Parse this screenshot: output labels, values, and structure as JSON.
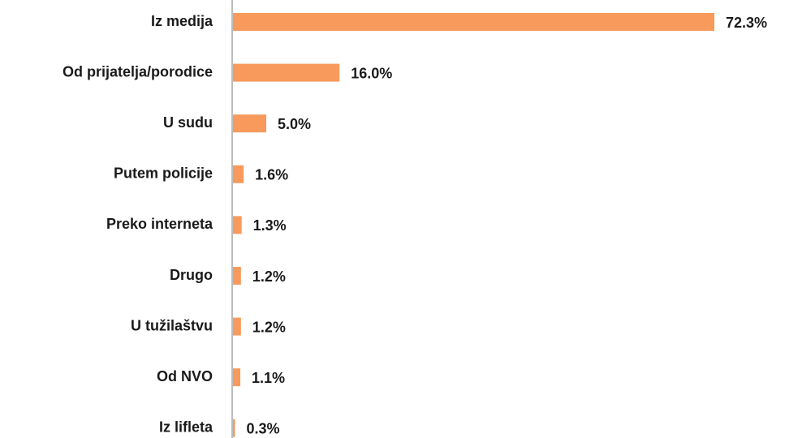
{
  "chart_data": {
    "type": "barh",
    "categories": [
      "Iz medija",
      "Od prijatelja/porodice",
      "U sudu",
      "Putem policije",
      "Preko interneta",
      "Drugo",
      "U tužilaštvu",
      "Od NVO",
      "Iz lifleta"
    ],
    "values": [
      72.3,
      16.0,
      5.0,
      1.6,
      1.3,
      1.2,
      1.2,
      1.1,
      0.3
    ],
    "value_labels": [
      "72.3%",
      "16.0%",
      "5.0%",
      "1.6%",
      "1.3%",
      "1.2%",
      "1.2%",
      "1.1%",
      "0.3%"
    ],
    "color": "#f79a5c"
  }
}
